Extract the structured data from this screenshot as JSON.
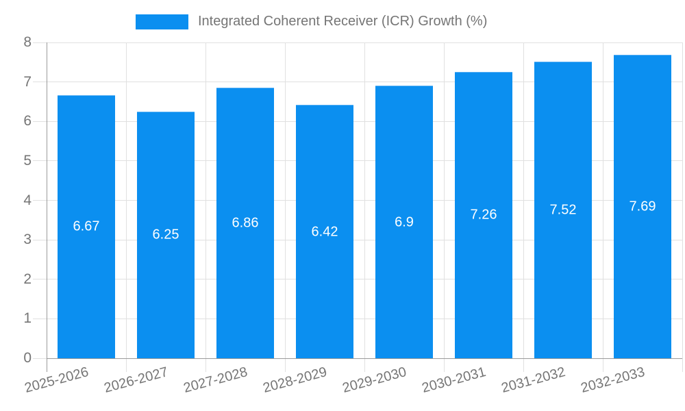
{
  "legend": {
    "label": "Integrated Coherent Receiver (ICR) Growth (%)"
  },
  "colors": {
    "bar": "#0b8ff0",
    "bar_edge": "#55aef3",
    "grid": "#e0e0e0",
    "axis": "#9a9a9a",
    "axis_text": "#757575",
    "value_text": "#ffffff",
    "background": "#ffffff"
  },
  "chart_data": {
    "type": "bar",
    "title": "",
    "series_name": "Integrated Coherent Receiver (ICR) Growth (%)",
    "categories": [
      "2025-2026",
      "2026-2027",
      "2027-2028",
      "2028-2029",
      "2029-2030",
      "2030-2031",
      "2031-2032",
      "2032-2033"
    ],
    "values": [
      6.67,
      6.25,
      6.86,
      6.42,
      6.9,
      7.26,
      7.52,
      7.69
    ],
    "value_labels": [
      "6.67",
      "6.25",
      "6.86",
      "6.42",
      "6.9",
      "7.26",
      "7.52",
      "7.69"
    ],
    "xlabel": "",
    "ylabel": "",
    "ylim": [
      0,
      8
    ],
    "y_ticks": [
      0,
      1,
      2,
      3,
      4,
      5,
      6,
      7,
      8
    ],
    "grid": true,
    "legend_position": "top",
    "bar_label_position": "inside-center",
    "x_tick_rotation_deg": -15
  }
}
